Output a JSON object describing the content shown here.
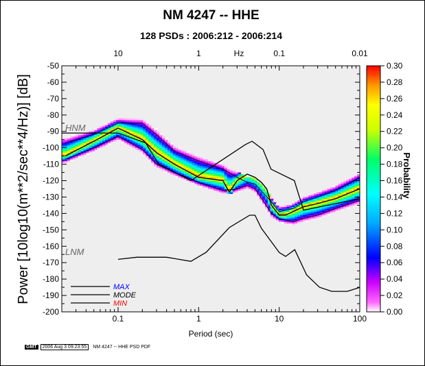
{
  "chart_data": {
    "type": "heatmap",
    "title": "NM 4247 -- HHE",
    "subtitle": "128 PSDs : 2006:212 - 2006:214",
    "xlabel": "Period (sec)",
    "ylabel": "Power [10log10(m**2/sec**4/Hz)] [dB]",
    "top_axis_label": "Hz",
    "x_scale": "log",
    "xlim": [
      0.02,
      100
    ],
    "ylim": [
      -200,
      -50
    ],
    "x_ticks": [
      0.1,
      1,
      10,
      100
    ],
    "x_tick_labels": [
      "0.1",
      "1",
      "10",
      "100"
    ],
    "top_ticks": [
      0.1,
      1,
      10,
      100
    ],
    "top_tick_labels": [
      "10",
      "1",
      "0.1",
      "0.01"
    ],
    "y_ticks": [
      -200,
      -190,
      -180,
      -170,
      -160,
      -150,
      -140,
      -130,
      -120,
      -110,
      -100,
      -90,
      -80,
      -70,
      -60,
      -50
    ],
    "y_tick_labels": [
      "-200",
      "-190",
      "-180",
      "-170",
      "-160",
      "-150",
      "-140",
      "-130",
      "-120",
      "-110",
      "-100",
      "-90",
      "-80",
      "-70",
      "-60",
      "-50"
    ],
    "grid": false,
    "colorbar": {
      "label": "Probability",
      "min": 0,
      "max": 0.3,
      "tick_labels": [
        "0.00",
        "0.02",
        "0.04",
        "0.06",
        "0.08",
        "0.10",
        "0.12",
        "0.14",
        "0.16",
        "0.18",
        "0.20",
        "0.22",
        "0.24",
        "0.26",
        "0.28",
        "0.30"
      ]
    },
    "annotations": [
      {
        "text": "HNM",
        "x": 0.022,
        "y": -88
      },
      {
        "text": "LNM",
        "x": 0.022,
        "y": -168
      }
    ],
    "series": [
      {
        "name": "MAX",
        "color": "#0000ff",
        "x": [
          0.022,
          0.05,
          0.1,
          0.2,
          0.3,
          0.5,
          1,
          2,
          3,
          4,
          5,
          8,
          10,
          15,
          20,
          30,
          50,
          100
        ],
        "y": [
          -97,
          -92,
          -85,
          -85,
          -92,
          -102,
          -108,
          -113,
          -118,
          -121,
          -122,
          -133,
          -139,
          -137,
          -133,
          -130,
          -126,
          -118
        ]
      },
      {
        "name": "MODE",
        "color": "#000000",
        "x": [
          0.022,
          0.05,
          0.1,
          0.2,
          0.3,
          0.5,
          1,
          2,
          2.4,
          3,
          4,
          5,
          6,
          7,
          8,
          10,
          12,
          20,
          30,
          50,
          100
        ],
        "y": [
          -105,
          -96,
          -88,
          -95,
          -103,
          -110,
          -118,
          -120,
          -127,
          -120,
          -116,
          -118,
          -121,
          -125,
          -135,
          -141,
          -141,
          -136,
          -134,
          -131,
          -125
        ]
      },
      {
        "name": "MIN",
        "color": "#ff0000",
        "x": [
          0.022,
          0.05,
          0.1,
          0.2,
          0.3,
          0.5,
          1,
          2,
          3,
          4,
          5,
          8,
          10,
          12,
          15,
          20,
          30,
          50,
          100
        ],
        "y": [
          -107,
          -100,
          -93,
          -101,
          -110,
          -115,
          -121,
          -126,
          -125,
          -123,
          -125,
          -140,
          -143,
          -144,
          -145,
          -143,
          -141,
          -137,
          -132
        ]
      }
    ],
    "legend": [
      "MAX",
      "MODE",
      "MIN"
    ],
    "legend_placement": "bottom-left"
  },
  "footer": {
    "logo": "GMT",
    "timestamp": "2006 Aug  3 09:23:55",
    "caption": "NM 4247 -- HHE PSD PDF"
  }
}
